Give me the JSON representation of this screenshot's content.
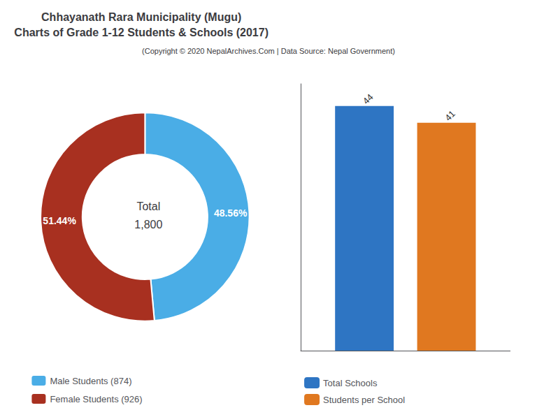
{
  "chart_data": [
    {
      "type": "pie",
      "title": "Chhayanath Rara Municipality (Mugu)\nCharts of Grade 1-12 Students & Schools (2017)",
      "subtitle": "(Copyright © 2020 NepalArchives.Com | Data Source: Nepal Government)",
      "categories": [
        "Male Students (874)",
        "Female Students (926)"
      ],
      "values": [
        48.56,
        51.44
      ],
      "value_labels": [
        "48.56%",
        "51.44%"
      ],
      "colors": [
        "#4aade6",
        "#a83020"
      ],
      "annotations": [
        "Total",
        "1,800"
      ],
      "data_labels": true,
      "legend": "bottom"
    },
    {
      "type": "bar",
      "categories": [
        null
      ],
      "series": [
        {
          "name": "Total Schools",
          "color": "#2e75c3",
          "values": [
            44
          ]
        },
        {
          "name": "Students per School",
          "color": "#e07820",
          "values": [
            41
          ]
        }
      ],
      "ylim": [
        0,
        48
      ],
      "tick_labels": false,
      "grid": false,
      "data_labels": true,
      "legend": "bottom"
    }
  ]
}
